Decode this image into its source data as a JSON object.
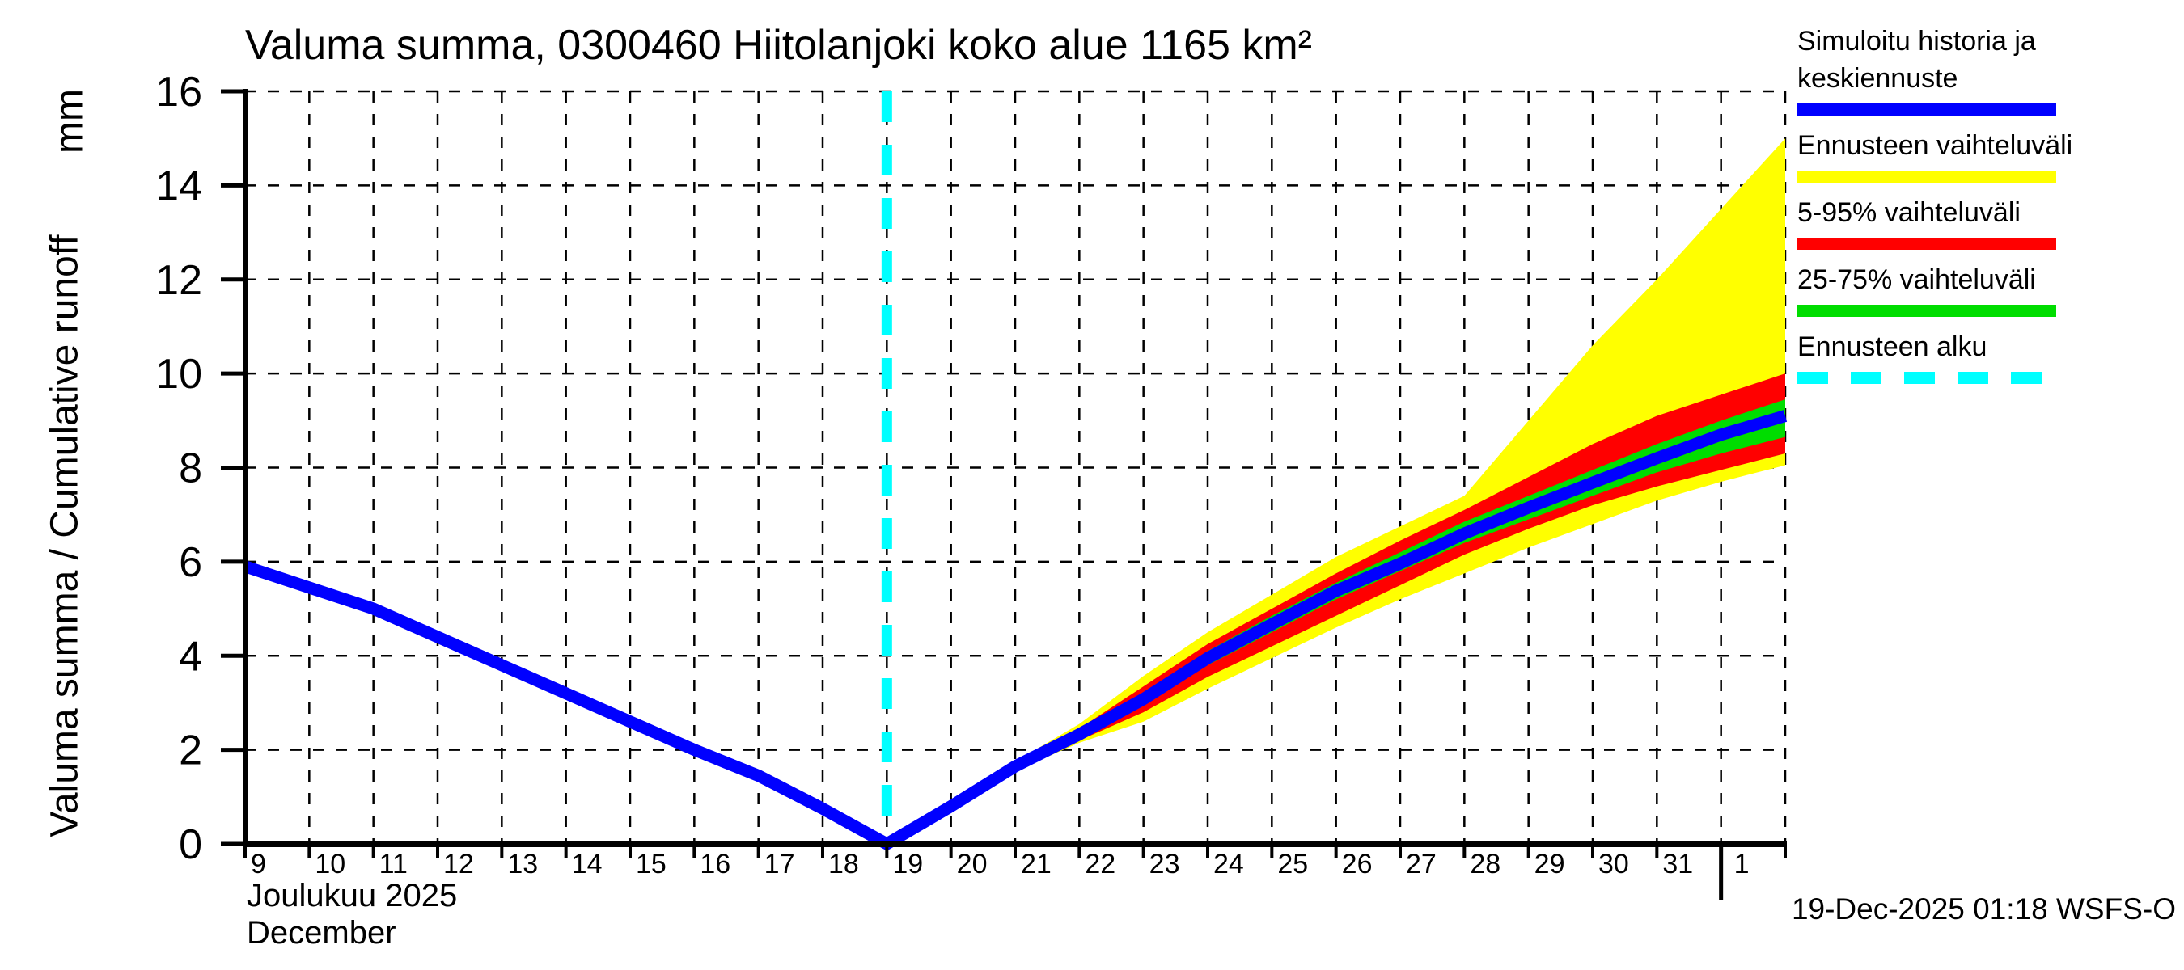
{
  "title": "Valuma summa, 0300460 Hiitolanjoki koko alue 1165 km²",
  "y_axis": {
    "label": "Valuma summa / Cumulative runoff",
    "unit": "mm",
    "ticks": [
      0,
      2,
      4,
      6,
      8,
      10,
      12,
      14,
      16
    ],
    "range": [
      0,
      16
    ]
  },
  "x_axis": {
    "month_fi": "Joulukuu 2025",
    "month_en": "December",
    "day_range": [
      9,
      33
    ],
    "month_boundary_day": 32,
    "day_ticks": [
      {
        "day": 9,
        "label": "9"
      },
      {
        "day": 10,
        "label": "10"
      },
      {
        "day": 11,
        "label": "11"
      },
      {
        "day": 12,
        "label": "12"
      },
      {
        "day": 13,
        "label": "13"
      },
      {
        "day": 14,
        "label": "14"
      },
      {
        "day": 15,
        "label": "15"
      },
      {
        "day": 16,
        "label": "16"
      },
      {
        "day": 17,
        "label": "17"
      },
      {
        "day": 18,
        "label": "18"
      },
      {
        "day": 19,
        "label": "19"
      },
      {
        "day": 20,
        "label": "20"
      },
      {
        "day": 21,
        "label": "21"
      },
      {
        "day": 22,
        "label": "22"
      },
      {
        "day": 23,
        "label": "23"
      },
      {
        "day": 24,
        "label": "24"
      },
      {
        "day": 25,
        "label": "25"
      },
      {
        "day": 26,
        "label": "26"
      },
      {
        "day": 27,
        "label": "27"
      },
      {
        "day": 28,
        "label": "28"
      },
      {
        "day": 29,
        "label": "29"
      },
      {
        "day": 30,
        "label": "30"
      },
      {
        "day": 31,
        "label": "31"
      },
      {
        "day": 32,
        "label": "1"
      }
    ]
  },
  "legend": {
    "items": [
      {
        "key": "simulated-history",
        "label": "Simuloitu historia ja keskiennuste",
        "color": "#0000ff",
        "dashed": false
      },
      {
        "key": "forecast-range",
        "label": "Ennusteen vaihteluväli",
        "color": "#ffff00",
        "dashed": false
      },
      {
        "key": "range-5-95",
        "label": "5-95% vaihteluväli",
        "color": "#ff0000",
        "dashed": false
      },
      {
        "key": "range-25-75",
        "label": "25-75% vaihteluväli",
        "color": "#00dd00",
        "dashed": false
      },
      {
        "key": "forecast-start",
        "label": "Ennusteen alku",
        "color": "#00ffff",
        "dashed": true
      }
    ]
  },
  "footer": {
    "timestamp": "19-Dec-2025 01:18 WSFS-O"
  },
  "colors": {
    "median_and_history": "#0000ff",
    "forecast_range": "#ffff00",
    "range_5_95": "#ff0000",
    "range_25_75": "#00dd00",
    "forecast_start_line": "#00ffff",
    "axis": "#000000",
    "background": "#ffffff"
  },
  "chart_data": {
    "type": "line",
    "title": "Valuma summa, 0300460 Hiitolanjoki koko alue 1165 km²",
    "xlabel": "Joulukuu 2025 / December",
    "ylabel": "Valuma summa / Cumulative runoff (mm)",
    "ylim": [
      0,
      16
    ],
    "x_note": "x = day of December 2025; 32 = 1 Jan, 33 = 2 Jan (right edge)",
    "forecast_start_x": 19,
    "grid": true,
    "legend_position": "outside-right-top",
    "history": {
      "x": [
        9,
        10,
        11,
        12,
        13,
        14,
        15,
        16,
        17,
        18,
        19
      ],
      "y": [
        5.9,
        5.45,
        5.0,
        4.4,
        3.8,
        3.2,
        2.6,
        2.0,
        1.45,
        0.75,
        0.0
      ]
    },
    "forecast_x": [
      19,
      20,
      21,
      22,
      23,
      24,
      25,
      26,
      27,
      28,
      29,
      30,
      31,
      32,
      33
    ],
    "forecast_median": [
      0.0,
      0.8,
      1.65,
      2.33,
      3.08,
      3.95,
      4.67,
      5.38,
      5.96,
      6.6,
      7.15,
      7.68,
      8.2,
      8.7,
      9.1
    ],
    "band_minmax": {
      "low": [
        0.0,
        0.75,
        1.55,
        2.15,
        2.6,
        3.3,
        3.95,
        4.6,
        5.2,
        5.75,
        6.3,
        6.8,
        7.3,
        7.7,
        8.05
      ],
      "high": [
        0.0,
        0.85,
        1.75,
        2.55,
        3.57,
        4.5,
        5.3,
        6.1,
        6.75,
        7.4,
        9.0,
        10.6,
        12.0,
        13.5,
        15.0
      ]
    },
    "band_5_95": {
      "low": [
        0.0,
        0.77,
        1.58,
        2.2,
        2.8,
        3.55,
        4.2,
        4.85,
        5.5,
        6.15,
        6.7,
        7.2,
        7.6,
        7.95,
        8.3
      ],
      "high": [
        0.0,
        0.83,
        1.72,
        2.45,
        3.35,
        4.25,
        5.0,
        5.75,
        6.45,
        7.1,
        7.8,
        8.5,
        9.1,
        9.55,
        10.0
      ]
    },
    "band_25_75": {
      "low": [
        0.0,
        0.78,
        1.6,
        2.25,
        2.95,
        3.8,
        4.5,
        5.2,
        5.8,
        6.4,
        6.9,
        7.4,
        7.9,
        8.3,
        8.65
      ],
      "high": [
        0.0,
        0.82,
        1.7,
        2.4,
        3.2,
        4.1,
        4.85,
        5.55,
        6.2,
        6.85,
        7.4,
        7.95,
        8.5,
        9.0,
        9.45
      ]
    }
  }
}
